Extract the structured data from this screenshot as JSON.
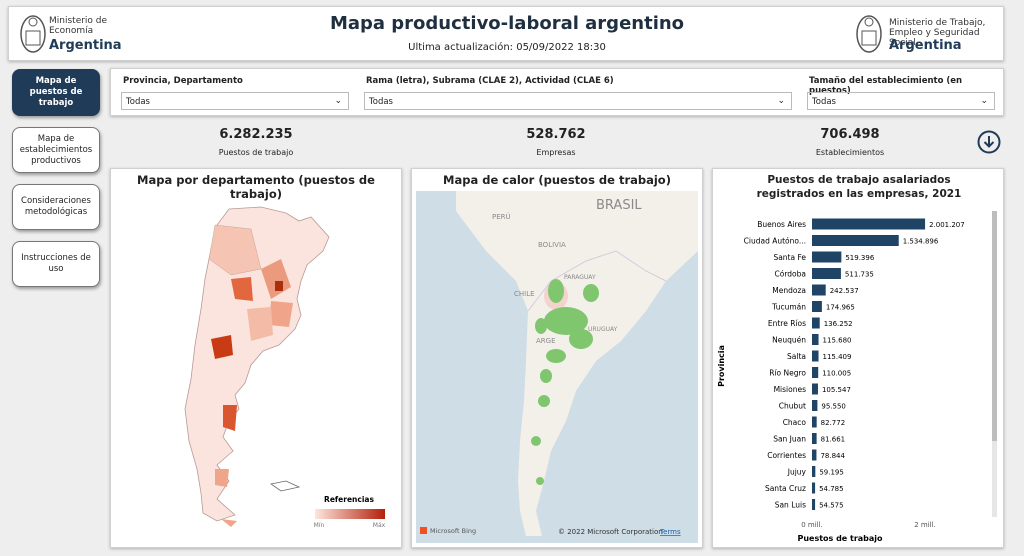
{
  "header": {
    "left_logo": {
      "line1": "Ministerio de",
      "line2": "Economía",
      "line3": "Argentina"
    },
    "title": "Mapa productivo-laboral argentino",
    "subtitle": "Ultima actualización: 05/09/2022 18:30",
    "right_logo": {
      "line1": "Ministerio de Trabajo,",
      "line2": "Empleo y Seguridad Social",
      "line3": "Argentina"
    }
  },
  "nav": [
    "Mapa de puestos de trabajo",
    "Mapa de establecimientos productivos",
    "Consideraciones metodológicas",
    "Instrucciones de uso"
  ],
  "filters": [
    {
      "label": "Provincia, Departamento",
      "value": "Todas"
    },
    {
      "label": "Rama (letra), Subrama (CLAE 2), Actividad (CLAE 6)",
      "value": "Todas"
    },
    {
      "label": "Tamaño del establecimiento (en puestos)",
      "value": "Todas"
    }
  ],
  "kpis": [
    {
      "value": "6.282.235",
      "label": "Puestos de trabajo"
    },
    {
      "value": "528.762",
      "label": "Empresas"
    },
    {
      "value": "706.498",
      "label": "Establecimientos"
    }
  ],
  "department_map": {
    "title": "Mapa por departamento (puestos de trabajo)",
    "legend_title": "Referencias",
    "legend_min": "Mín",
    "legend_max": "Máx"
  },
  "heat_map": {
    "title": "Mapa de calor (puestos de trabajo)",
    "labels": [
      "BRASIL",
      "PERÚ",
      "BOLIVIA",
      "PARAGUAY",
      "CHILE",
      "URUGUAY",
      "ARGE"
    ],
    "provider": "Microsoft Bing",
    "copyright": "© 2022 Microsoft Corporation",
    "terms": "Terms"
  },
  "chart_data": {
    "type": "bar",
    "orientation": "horizontal",
    "title": "Puestos de trabajo asalariados registrados en las empresas, 2021",
    "x_label": "Puestos de trabajo",
    "y_label": "Provincia",
    "categories": [
      "Buenos Aires",
      "Ciudad Autóno...",
      "Santa Fe",
      "Córdoba",
      "Mendoza",
      "Tucumán",
      "Entre Ríos",
      "Neuquén",
      "Salta",
      "Río Negro",
      "Misiones",
      "Chubut",
      "Chaco",
      "San Juan",
      "Corrientes",
      "Jujuy",
      "Santa Cruz",
      "San Luis"
    ],
    "values": [
      2001207,
      1534896,
      519396,
      511735,
      242537,
      174965,
      136252,
      115680,
      115409,
      110005,
      105547,
      95550,
      82772,
      81661,
      78844,
      59195,
      54785,
      54575
    ],
    "value_labels": [
      "2.001.207",
      "1.534.896",
      "519.396",
      "511.735",
      "242.537",
      "174.965",
      "136.252",
      "115.680",
      "115.409",
      "110.005",
      "105.547",
      "95.550",
      "82.772",
      "81.661",
      "78.844",
      "59.195",
      "54.785",
      "54.575"
    ],
    "color": "#1f4466",
    "xlim": [
      0,
      3000000
    ],
    "xticks": [
      {
        "value": 0,
        "label": "0 mill."
      },
      {
        "value": 2000000,
        "label": "2 mill."
      }
    ]
  }
}
